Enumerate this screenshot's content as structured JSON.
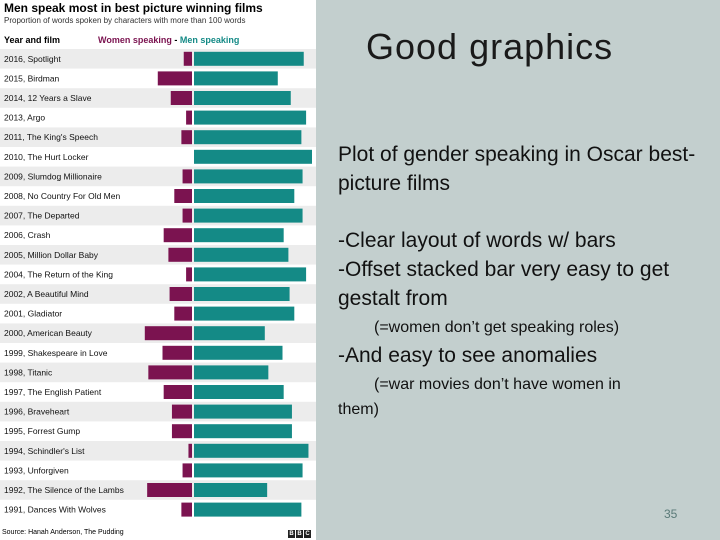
{
  "slide": {
    "title": "Good graphics",
    "text_1": "Plot of gender speaking in Oscar best-picture films",
    "text_2a": "-Clear layout of words w/ bars",
    "text_2b": "-Offset stacked bar very easy to get gestalt from",
    "text_3": "(=women don’t get speaking roles)",
    "text_4": "-And easy to see anomalies",
    "text_5a": "(=war movies don’t have women in",
    "text_5b": "them)",
    "page_number": "35"
  },
  "chart": {
    "title": "Men speak most in best picture winning films",
    "subtitle": "Proportion of words spoken by characters with more than 100 words",
    "year_header": "Year and film",
    "legend_women": "Women speaking",
    "legend_sep": " - ",
    "legend_men": "Men speaking",
    "source": "Source: Hanah Anderson, The Pudding",
    "bbc": [
      "B",
      "B",
      "C"
    ],
    "colors": {
      "women": "#7b1350",
      "men": "#148a86",
      "row_alt": "#ececec"
    }
  },
  "chart_data": {
    "type": "bar",
    "title": "Men speak most in best picture winning films",
    "subtitle": "Proportion of words spoken by characters with more than 100 words",
    "categories": [
      "2016, Spotlight",
      "2015, Birdman",
      "2014, 12 Years a Slave",
      "2013, Argo",
      "2011, The King's Speech",
      "2010, The Hurt Locker",
      "2009, Slumdog Millionaire",
      "2008, No Country For Old Men",
      "2007, The Departed",
      "2006, Crash",
      "2005, Million Dollar Baby",
      "2004, The Return of the King",
      "2002, A Beautiful Mind",
      "2001, Gladiator",
      "2000, American Beauty",
      "1999, Shakespeare in Love",
      "1998, Titanic",
      "1997, The English Patient",
      "1996, Braveheart",
      "1995, Forrest Gump",
      "1994, Schindler's List",
      "1993, Unforgiven",
      "1992, The Silence of the Lambs",
      "1991, Dances With Wolves"
    ],
    "series": [
      {
        "name": "Women speaking",
        "values": [
          0.07,
          0.29,
          0.18,
          0.05,
          0.09,
          0.0,
          0.08,
          0.15,
          0.08,
          0.24,
          0.2,
          0.05,
          0.19,
          0.15,
          0.4,
          0.25,
          0.37,
          0.24,
          0.17,
          0.17,
          0.03,
          0.08,
          0.38,
          0.09
        ]
      },
      {
        "name": "Men speaking",
        "values": [
          0.93,
          0.71,
          0.82,
          0.95,
          0.91,
          1.0,
          0.92,
          0.85,
          0.92,
          0.76,
          0.8,
          0.95,
          0.81,
          0.85,
          0.6,
          0.75,
          0.63,
          0.76,
          0.83,
          0.83,
          0.97,
          0.92,
          0.62,
          0.91
        ]
      }
    ],
    "ylim": [
      0,
      1
    ],
    "orientation": "horizontal-offset-stacked",
    "legend": "top"
  }
}
